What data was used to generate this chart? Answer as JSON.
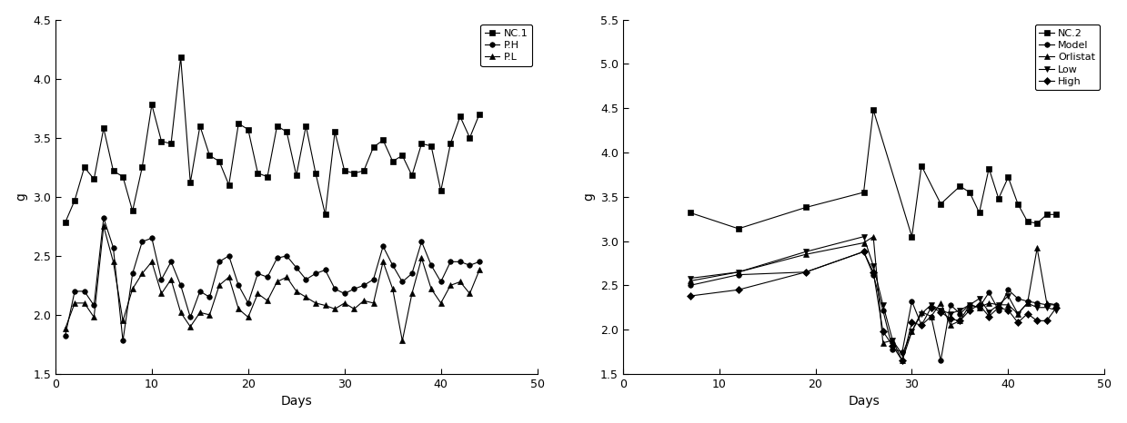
{
  "chart1": {
    "xlabel": "Days",
    "ylabel": "g",
    "xlim": [
      0,
      50
    ],
    "ylim": [
      1.5,
      4.5
    ],
    "yticks": [
      1.5,
      2.0,
      2.5,
      3.0,
      3.5,
      4.0,
      4.5
    ],
    "xticks": [
      0,
      10,
      20,
      30,
      40,
      50
    ],
    "series": {
      "NC.1": {
        "x": [
          1,
          2,
          3,
          4,
          5,
          6,
          7,
          8,
          9,
          10,
          11,
          12,
          13,
          14,
          15,
          16,
          17,
          18,
          19,
          20,
          21,
          22,
          23,
          24,
          25,
          26,
          27,
          28,
          29,
          30,
          31,
          32,
          33,
          34,
          35,
          36,
          37,
          38,
          39,
          40,
          41,
          42,
          43,
          44
        ],
        "y": [
          2.78,
          2.97,
          3.25,
          3.15,
          3.58,
          3.22,
          3.17,
          2.88,
          3.25,
          3.78,
          3.47,
          3.45,
          4.18,
          3.12,
          3.6,
          3.35,
          3.3,
          3.1,
          3.62,
          3.57,
          3.2,
          3.17,
          3.6,
          3.55,
          3.18,
          3.6,
          3.2,
          2.85,
          3.55,
          3.22,
          3.2,
          3.22,
          3.42,
          3.48,
          3.3,
          3.35,
          3.18,
          3.45,
          3.43,
          3.05,
          3.45,
          3.68,
          3.5,
          3.7
        ],
        "marker": "s"
      },
      "P.H": {
        "x": [
          1,
          2,
          3,
          4,
          5,
          6,
          7,
          8,
          9,
          10,
          11,
          12,
          13,
          14,
          15,
          16,
          17,
          18,
          19,
          20,
          21,
          22,
          23,
          24,
          25,
          26,
          27,
          28,
          29,
          30,
          31,
          32,
          33,
          34,
          35,
          36,
          37,
          38,
          39,
          40,
          41,
          42,
          43,
          44
        ],
        "y": [
          1.82,
          2.2,
          2.2,
          2.08,
          2.82,
          2.57,
          1.78,
          2.35,
          2.62,
          2.65,
          2.3,
          2.45,
          2.25,
          1.98,
          2.2,
          2.15,
          2.45,
          2.5,
          2.25,
          2.1,
          2.35,
          2.32,
          2.48,
          2.5,
          2.4,
          2.3,
          2.35,
          2.38,
          2.22,
          2.18,
          2.22,
          2.25,
          2.3,
          2.58,
          2.42,
          2.28,
          2.35,
          2.62,
          2.42,
          2.28,
          2.45,
          2.45,
          2.42,
          2.45
        ],
        "marker": "o"
      },
      "P.L": {
        "x": [
          1,
          2,
          3,
          4,
          5,
          6,
          7,
          8,
          9,
          10,
          11,
          12,
          13,
          14,
          15,
          16,
          17,
          18,
          19,
          20,
          21,
          22,
          23,
          24,
          25,
          26,
          27,
          28,
          29,
          30,
          31,
          32,
          33,
          34,
          35,
          36,
          37,
          38,
          39,
          40,
          41,
          42,
          43,
          44
        ],
        "y": [
          1.88,
          2.1,
          2.1,
          1.98,
          2.75,
          2.45,
          1.95,
          2.22,
          2.35,
          2.45,
          2.18,
          2.3,
          2.02,
          1.9,
          2.02,
          2.0,
          2.25,
          2.32,
          2.05,
          1.98,
          2.18,
          2.12,
          2.28,
          2.32,
          2.2,
          2.15,
          2.1,
          2.08,
          2.05,
          2.1,
          2.05,
          2.12,
          2.1,
          2.45,
          2.22,
          1.78,
          2.18,
          2.48,
          2.22,
          2.1,
          2.25,
          2.28,
          2.18,
          2.38
        ],
        "marker": "^"
      }
    }
  },
  "chart2": {
    "xlabel": "Days",
    "ylabel": "g",
    "xlim": [
      0,
      50
    ],
    "ylim": [
      1.5,
      5.5
    ],
    "yticks": [
      1.5,
      2.0,
      2.5,
      3.0,
      3.5,
      4.0,
      4.5,
      5.0,
      5.5
    ],
    "xticks": [
      0,
      10,
      20,
      30,
      40,
      50
    ],
    "series": {
      "NC.2": {
        "x": [
          7,
          12,
          19,
          25,
          26,
          30,
          31,
          33,
          35,
          36,
          37,
          38,
          39,
          40,
          41,
          42,
          43,
          44,
          45
        ],
        "y": [
          3.32,
          3.14,
          3.38,
          3.55,
          4.48,
          3.05,
          3.85,
          3.42,
          3.62,
          3.55,
          3.32,
          3.82,
          3.48,
          3.72,
          3.42,
          3.22,
          3.2,
          3.3,
          3.3
        ],
        "marker": "s"
      },
      "Model": {
        "x": [
          7,
          12,
          19,
          25,
          26,
          27,
          28,
          29,
          30,
          31,
          32,
          33,
          34,
          35,
          36,
          37,
          38,
          39,
          40,
          41,
          42,
          43,
          44,
          45
        ],
        "y": [
          2.5,
          2.62,
          2.65,
          2.88,
          2.62,
          2.22,
          1.78,
          1.75,
          2.32,
          2.05,
          2.15,
          1.65,
          2.28,
          2.18,
          2.28,
          2.25,
          2.42,
          2.22,
          2.45,
          2.35,
          2.32,
          2.3,
          2.28,
          2.28
        ],
        "marker": "o"
      },
      "Orlistat": {
        "x": [
          7,
          12,
          19,
          25,
          26,
          27,
          28,
          29,
          30,
          31,
          32,
          33,
          34,
          35,
          36,
          37,
          38,
          39,
          40,
          41,
          42,
          43,
          44,
          45
        ],
        "y": [
          2.55,
          2.65,
          2.85,
          2.98,
          3.05,
          1.85,
          1.88,
          1.65,
          1.98,
          2.2,
          2.15,
          2.3,
          2.05,
          2.1,
          2.28,
          2.25,
          2.3,
          2.28,
          2.28,
          2.18,
          2.3,
          2.92,
          2.3,
          2.28
        ],
        "marker": "^"
      },
      "Low": {
        "x": [
          7,
          12,
          19,
          25,
          26,
          27,
          28,
          29,
          30,
          31,
          32,
          33,
          34,
          35,
          36,
          37,
          38,
          39,
          40,
          41,
          42,
          43,
          44,
          45
        ],
        "y": [
          2.58,
          2.65,
          2.88,
          3.05,
          2.72,
          2.28,
          1.88,
          1.72,
          1.98,
          2.18,
          2.28,
          2.22,
          2.18,
          2.22,
          2.28,
          2.35,
          2.2,
          2.28,
          2.38,
          2.18,
          2.3,
          2.25,
          2.25,
          2.22
        ],
        "marker": "v"
      },
      "High": {
        "x": [
          7,
          12,
          19,
          25,
          26,
          27,
          28,
          29,
          30,
          31,
          32,
          33,
          34,
          35,
          36,
          37,
          38,
          39,
          40,
          41,
          42,
          43,
          44,
          45
        ],
        "y": [
          2.38,
          2.45,
          2.65,
          2.88,
          2.65,
          1.98,
          1.82,
          1.65,
          2.08,
          2.05,
          2.25,
          2.2,
          2.12,
          2.1,
          2.22,
          2.28,
          2.15,
          2.25,
          2.22,
          2.08,
          2.18,
          2.1,
          2.1,
          2.25
        ],
        "marker": "D"
      }
    }
  },
  "line_color": "black",
  "marker_size": 4,
  "linewidth": 0.8,
  "legend_fontsize": 8,
  "axis_fontsize": 10,
  "tick_fontsize": 9,
  "font_family": "Arial"
}
